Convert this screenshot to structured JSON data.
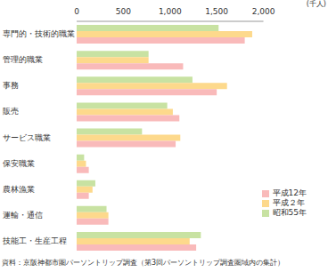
{
  "chart_data": {
    "type": "bar",
    "orientation": "horizontal",
    "x_label": "(千人)",
    "source": "資料：京阪神都市圏パーソントリップ調査（第3回パーソントリップ調査圏域内の集計）",
    "categories": [
      "専門的・技術的職業",
      "管理的職業",
      "事務",
      "販売",
      "サービス職業",
      "保安職業",
      "農林漁業",
      "運輸・通信",
      "技能工・生産工程"
    ],
    "series": [
      {
        "name": "昭和55年",
        "color": "#c8e2a2",
        "values": [
          1520,
          770,
          1240,
          970,
          700,
          80,
          200,
          320,
          1330
        ]
      },
      {
        "name": "平成２年",
        "color": "#fdd98c",
        "values": [
          1880,
          770,
          1610,
          1030,
          1110,
          100,
          170,
          340,
          1210
        ]
      },
      {
        "name": "平成12年",
        "color": "#f9baba",
        "values": [
          1800,
          1140,
          1500,
          1100,
          1060,
          130,
          130,
          340,
          1280
        ]
      }
    ],
    "xlim": [
      0,
      2000
    ],
    "xticks": [
      0,
      500,
      {
        "value": 1000,
        "label": "1,000"
      },
      {
        "value": 1500,
        "label": "1,500"
      },
      {
        "value": 2000,
        "label": "2,000"
      }
    ],
    "grid": false,
    "legend": "lower right"
  }
}
